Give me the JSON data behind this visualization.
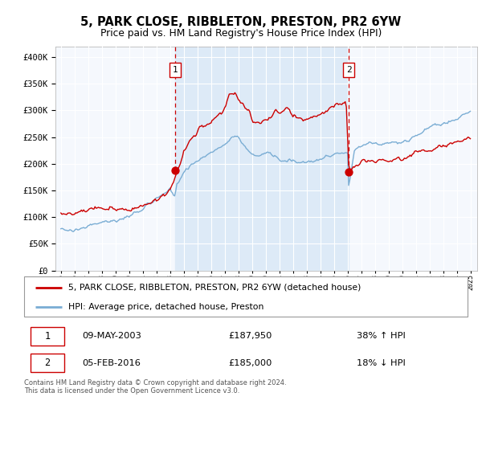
{
  "title": "5, PARK CLOSE, RIBBLETON, PRESTON, PR2 6YW",
  "subtitle": "Price paid vs. HM Land Registry's House Price Index (HPI)",
  "legend_line1": "5, PARK CLOSE, RIBBLETON, PRESTON, PR2 6YW (detached house)",
  "legend_line2": "HPI: Average price, detached house, Preston",
  "sale1_label": "1",
  "sale1_date": "09-MAY-2003",
  "sale1_price": 187950,
  "sale1_pct": "38% ↑ HPI",
  "sale2_label": "2",
  "sale2_date": "05-FEB-2016",
  "sale2_price": 185000,
  "sale2_pct": "18% ↓ HPI",
  "sale1_year": 2003.36,
  "sale2_year": 2016.09,
  "footer": "Contains HM Land Registry data © Crown copyright and database right 2024.\nThis data is licensed under the Open Government Licence v3.0.",
  "hpi_color": "#7aadd4",
  "price_color": "#cc0000",
  "sale_dot_color": "#cc0000",
  "dashed_line_color": "#cc0000",
  "bg_shaded_color": "#ddeaf7",
  "plot_bg_color": "#f5f8fd",
  "grid_color": "#ffffff",
  "ylim": [
    0,
    420000
  ],
  "xlim_left": 1994.6,
  "xlim_right": 2025.5
}
